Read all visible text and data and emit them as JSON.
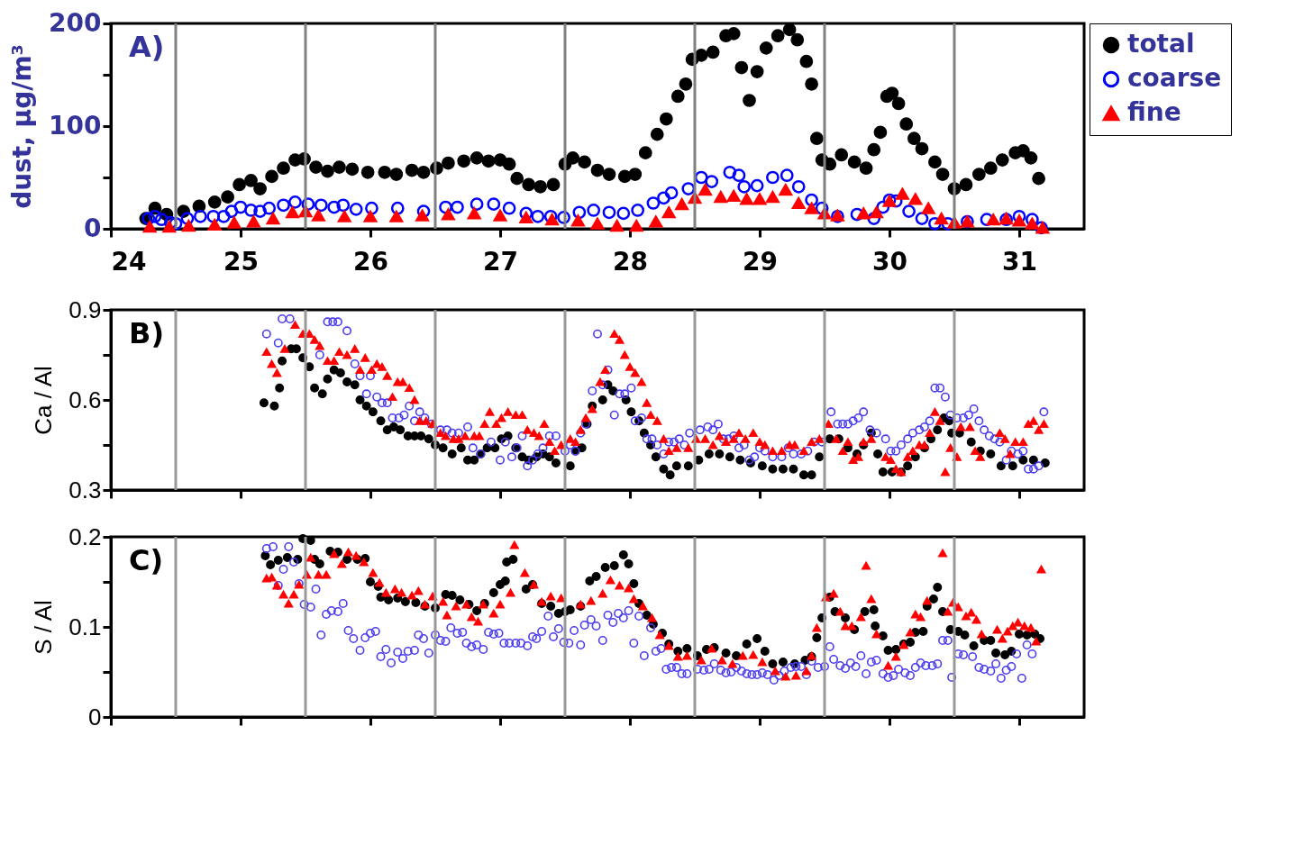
{
  "chart_data": [
    {
      "type": "scatter",
      "ylabel": "dust,  µg/m³",
      "annotations": [
        "A)"
      ],
      "xlim": [
        24,
        31.5
      ],
      "xticks": [
        24,
        25,
        26,
        27,
        28,
        29,
        30,
        31
      ],
      "ylim": [
        0,
        200
      ],
      "yticks": [
        0,
        {
          "value": 50,
          "label": null
        },
        100,
        {
          "value": 150,
          "label": null
        },
        200
      ],
      "legend": "top right",
      "ref_lines": [
        {
          "axis": "x",
          "value": 24.5,
          "color": "#808080"
        },
        {
          "axis": "x",
          "value": 25.5,
          "color": "#808080"
        },
        {
          "axis": "x",
          "value": 26.5,
          "color": "#808080"
        },
        {
          "axis": "x",
          "value": 27.5,
          "color": "#808080"
        },
        {
          "axis": "x",
          "value": 28.5,
          "color": "#808080"
        },
        {
          "axis": "x",
          "value": 29.5,
          "color": "#808080"
        },
        {
          "axis": "x",
          "value": 30.5,
          "color": "#808080"
        }
      ],
      "series": [
        {
          "name": "total",
          "color": "#000000",
          "marker": "circle",
          "x": [
            24.27,
            24.34,
            24.43,
            24.56,
            24.68,
            24.8,
            24.9,
            24.99,
            25.08,
            25.15,
            25.24,
            25.33,
            25.42,
            25.49,
            25.58,
            25.67,
            25.76,
            25.86,
            25.98,
            26.11,
            26.2,
            26.32,
            26.41,
            26.51,
            26.6,
            26.72,
            26.82,
            26.91,
            27.0,
            27.07,
            27.13,
            27.22,
            27.31,
            27.41,
            27.5,
            27.56,
            27.65,
            27.75,
            27.84,
            27.96,
            28.04,
            28.12,
            28.21,
            28.28,
            28.37,
            28.43,
            28.48,
            28.55,
            28.64,
            28.74,
            28.8,
            28.86,
            28.92,
            28.98,
            29.05,
            29.14,
            29.23,
            29.29,
            29.36,
            29.4,
            29.44,
            29.48,
            29.54,
            29.63,
            29.73,
            29.82,
            29.88,
            29.93,
            29.98,
            30.02,
            30.07,
            30.13,
            30.19,
            30.25,
            30.35,
            30.41,
            30.5,
            30.59,
            30.69,
            30.78,
            30.87,
            30.97,
            31.03,
            31.09,
            31.15
          ],
          "values": [
            10,
            20,
            14,
            17,
            22,
            26,
            31,
            43,
            47,
            39,
            51,
            59,
            67,
            68,
            60,
            56,
            60,
            58,
            55,
            55,
            53,
            57,
            55,
            59,
            64,
            66,
            69,
            66,
            67,
            63,
            49,
            43,
            41,
            43,
            63,
            69,
            65,
            57,
            53,
            51,
            53,
            74,
            92,
            107,
            129,
            141,
            165,
            169,
            172,
            188,
            190,
            157,
            125,
            153,
            176,
            188,
            194,
            184,
            163,
            141,
            88,
            67,
            63,
            72,
            65,
            59,
            77,
            94,
            129,
            132,
            122,
            102,
            88,
            78,
            65,
            53,
            39,
            43,
            53,
            59,
            67,
            74,
            76,
            69,
            49
          ]
        },
        {
          "name": "coarse",
          "color": "#0000ff",
          "marker": "open circle",
          "x": [
            24.29,
            24.34,
            24.39,
            24.46,
            24.5,
            24.59,
            24.69,
            24.79,
            24.87,
            24.93,
            25.0,
            25.08,
            25.15,
            25.22,
            25.33,
            25.42,
            25.52,
            25.62,
            25.72,
            25.79,
            25.89,
            26.01,
            26.21,
            26.41,
            26.58,
            26.67,
            26.82,
            26.95,
            27.07,
            27.2,
            27.29,
            27.39,
            27.49,
            27.61,
            27.72,
            27.84,
            27.95,
            28.06,
            28.18,
            28.26,
            28.32,
            28.45,
            28.55,
            28.63,
            28.77,
            28.84,
            28.88,
            28.98,
            29.1,
            29.21,
            29.3,
            29.4,
            29.48,
            29.6,
            29.75,
            29.88,
            29.95,
            30.0,
            30.05,
            30.15,
            30.25,
            30.35,
            30.45,
            30.6,
            30.75,
            30.9,
            31.0,
            31.1,
            31.17
          ],
          "values": [
            10,
            12,
            9,
            6,
            5,
            10,
            12,
            12,
            12,
            17,
            21,
            18,
            17,
            20,
            23,
            26,
            24,
            23,
            21,
            23,
            19,
            20,
            20,
            17,
            21,
            21,
            24,
            24,
            20,
            15,
            12,
            12,
            11,
            16,
            18,
            16,
            15,
            18,
            25,
            30,
            35,
            39,
            50,
            46,
            55,
            52,
            41,
            42,
            50,
            52,
            41,
            28,
            20,
            12,
            14,
            10,
            21,
            28,
            27,
            17,
            10,
            5,
            5,
            7,
            9,
            9,
            12,
            9,
            1
          ]
        },
        {
          "name": "fine",
          "color": "#ff0000",
          "marker": "triangle",
          "x": [
            24.3,
            24.45,
            24.6,
            24.8,
            24.95,
            25.1,
            25.25,
            25.4,
            25.5,
            25.6,
            25.8,
            26.0,
            26.2,
            26.4,
            26.6,
            26.8,
            27.0,
            27.2,
            27.4,
            27.6,
            27.75,
            27.9,
            28.05,
            28.2,
            28.3,
            28.4,
            28.5,
            28.58,
            28.7,
            28.8,
            28.9,
            29.0,
            29.1,
            29.2,
            29.3,
            29.4,
            29.5,
            29.6,
            29.8,
            29.9,
            30.0,
            30.1,
            30.2,
            30.3,
            30.4,
            30.5,
            30.6,
            30.8,
            30.9,
            31.0,
            31.1,
            31.18
          ],
          "values": [
            2,
            2,
            3,
            4,
            6,
            7,
            10,
            16,
            17,
            13,
            12,
            12,
            12,
            13,
            14,
            15,
            13,
            11,
            9,
            8,
            5,
            3,
            3,
            7,
            16,
            24,
            30,
            38,
            31,
            32,
            29,
            29,
            31,
            38,
            25,
            20,
            15,
            13,
            15,
            16,
            27,
            34,
            29,
            20,
            10,
            6,
            7,
            9,
            10,
            8,
            5,
            1
          ]
        }
      ]
    },
    {
      "type": "scatter",
      "ylabel": "Ca / Al",
      "annotations": [
        "B)"
      ],
      "xlim": [
        24,
        31.5
      ],
      "xticks": [
        {
          "value": 24,
          "label": null
        },
        {
          "value": 25,
          "label": null
        },
        {
          "value": 26,
          "label": null
        },
        {
          "value": 27,
          "label": null
        },
        {
          "value": 28,
          "label": null
        },
        {
          "value": 29,
          "label": null
        },
        {
          "value": 30,
          "label": null
        },
        {
          "value": 31,
          "label": null
        }
      ],
      "ylim": [
        0.3,
        0.9
      ],
      "yticks": [
        0.3,
        {
          "value": 0.45,
          "label": null
        },
        0.6,
        {
          "value": 0.75,
          "label": null
        },
        0.9
      ],
      "tick_labels": "y",
      "ref_lines": [
        {
          "axis": "x",
          "value": 24.5,
          "color": "#999999"
        },
        {
          "axis": "x",
          "value": 25.5,
          "color": "#999999"
        },
        {
          "axis": "x",
          "value": 26.5,
          "color": "#999999"
        },
        {
          "axis": "x",
          "value": 27.5,
          "color": "#999999"
        },
        {
          "axis": "x",
          "value": 28.5,
          "color": "#999999"
        },
        {
          "axis": "x",
          "value": 29.5,
          "color": "#999999"
        },
        {
          "axis": "x",
          "value": 30.5,
          "color": "#999999"
        }
      ],
      "series": [
        {
          "color": "#000000",
          "marker": "circle",
          "x": [
            25.18,
            25.26,
            25.3,
            25.32,
            25.39,
            25.43,
            25.48,
            25.53,
            25.57,
            25.63,
            25.67,
            25.72,
            25.77,
            25.82,
            25.88,
            25.92,
            25.97,
            26.02,
            26.08,
            26.13,
            26.18,
            26.23,
            26.29,
            26.34,
            26.39,
            26.45,
            26.5,
            26.56,
            26.63,
            26.7,
            26.75,
            26.8,
            26.85,
            26.9,
            26.96,
            27.01,
            27.06,
            27.12,
            27.17,
            27.22,
            27.28,
            27.33,
            27.38,
            27.43,
            27.54,
            27.58,
            27.63,
            27.67,
            27.71,
            27.79,
            27.83,
            27.87,
            27.97,
            28.01,
            28.07,
            28.11,
            28.16,
            28.2,
            28.26,
            28.31,
            28.36,
            28.45,
            28.53,
            28.61,
            28.69,
            28.77,
            28.85,
            28.93,
            29.02,
            29.1,
            29.18,
            29.26,
            29.34,
            29.4,
            29.46,
            29.54,
            29.61,
            29.68,
            29.75,
            29.8,
            29.86,
            29.91,
            29.95,
            30.02,
            30.09,
            30.14,
            30.2,
            30.27,
            30.32,
            30.37,
            30.42,
            30.46,
            30.48,
            30.54,
            30.63,
            30.7,
            30.78,
            30.86,
            30.95,
            31.03,
            31.11,
            31.2
          ],
          "values": [
            0.59,
            0.58,
            0.64,
            0.73,
            0.77,
            0.77,
            0.74,
            0.71,
            0.64,
            0.62,
            0.67,
            0.7,
            0.69,
            0.66,
            0.65,
            0.6,
            0.58,
            0.56,
            0.53,
            0.5,
            0.51,
            0.5,
            0.48,
            0.48,
            0.48,
            0.47,
            0.45,
            0.44,
            0.42,
            0.44,
            0.4,
            0.4,
            0.42,
            0.44,
            0.44,
            0.47,
            0.48,
            0.44,
            0.41,
            0.4,
            0.41,
            0.42,
            0.41,
            0.39,
            0.38,
            0.43,
            0.44,
            0.52,
            0.58,
            0.6,
            0.65,
            0.63,
            0.6,
            0.56,
            0.53,
            0.49,
            0.45,
            0.41,
            0.37,
            0.35,
            0.38,
            0.38,
            0.4,
            0.42,
            0.42,
            0.41,
            0.4,
            0.39,
            0.38,
            0.37,
            0.37,
            0.37,
            0.35,
            0.35,
            0.41,
            0.47,
            0.47,
            0.44,
            0.42,
            0.45,
            0.49,
            0.42,
            0.36,
            0.36,
            0.36,
            0.38,
            0.41,
            0.44,
            0.47,
            0.5,
            0.54,
            0.53,
            0.49,
            0.49,
            0.46,
            0.43,
            0.42,
            0.38,
            0.38,
            0.4,
            0.4,
            0.39
          ]
        },
        {
          "color": "#4b3cf0",
          "marker": "open circle",
          "x": [
            25.2,
            25.29,
            25.32,
            25.38,
            25.61,
            25.67,
            25.71,
            25.75,
            25.82,
            25.88,
            25.92,
            26.0,
            25.97,
            26.05,
            26.09,
            26.13,
            26.17,
            26.22,
            26.26,
            26.3,
            26.34,
            26.38,
            26.42,
            26.47,
            26.54,
            26.59,
            26.63,
            26.68,
            26.75,
            26.79,
            26.85,
            26.93,
            27.0,
            27.04,
            27.09,
            27.13,
            27.17,
            27.21,
            27.25,
            27.29,
            27.33,
            27.38,
            27.43,
            27.5,
            27.54,
            27.58,
            27.62,
            27.66,
            27.71,
            27.75,
            27.79,
            27.83,
            27.88,
            27.92,
            27.96,
            28.01,
            28.04,
            28.09,
            28.13,
            28.17,
            28.21,
            28.26,
            28.3,
            28.34,
            28.38,
            28.42,
            28.46,
            28.54,
            28.6,
            28.64,
            28.68,
            28.72,
            28.76,
            28.8,
            28.84,
            28.88,
            28.92,
            28.96,
            29.0,
            29.04,
            29.1,
            29.17,
            29.22,
            29.26,
            29.32,
            29.37,
            29.42,
            29.48,
            29.55,
            29.6,
            29.64,
            29.68,
            29.72,
            29.76,
            29.8,
            29.85,
            29.9,
            29.97,
            30.01,
            30.05,
            30.09,
            30.14,
            30.18,
            30.23,
            30.27,
            30.31,
            30.35,
            30.39,
            30.43,
            30.47,
            30.52,
            30.57,
            30.61,
            30.65,
            30.69,
            30.73,
            30.77,
            30.81,
            30.85,
            30.9,
            30.94,
            30.99,
            31.03,
            31.07,
            31.11,
            31.15,
            31.19
          ],
          "values": [
            0.82,
            0.79,
            0.87,
            0.87,
            0.75,
            0.86,
            0.86,
            0.86,
            0.83,
            0.72,
            0.68,
            0.68,
            0.62,
            0.61,
            0.59,
            0.59,
            0.54,
            0.54,
            0.55,
            0.58,
            0.53,
            0.56,
            0.54,
            0.52,
            0.5,
            0.5,
            0.49,
            0.49,
            0.51,
            0.44,
            0.42,
            0.46,
            0.4,
            0.46,
            0.41,
            0.44,
            0.48,
            0.38,
            0.4,
            0.42,
            0.44,
            0.48,
            0.48,
            0.43,
            0.45,
            0.43,
            0.49,
            0.52,
            0.63,
            0.82,
            0.65,
            0.7,
            0.55,
            0.62,
            0.62,
            0.64,
            0.53,
            0.54,
            0.47,
            0.47,
            0.45,
            0.42,
            0.46,
            0.46,
            0.47,
            0.45,
            0.49,
            0.5,
            0.51,
            0.5,
            0.52,
            0.47,
            0.47,
            0.48,
            0.44,
            0.45,
            0.4,
            0.41,
            0.44,
            0.43,
            0.41,
            0.41,
            0.44,
            0.42,
            0.42,
            0.43,
            0.46,
            0.46,
            0.56,
            0.52,
            0.52,
            0.52,
            0.53,
            0.54,
            0.56,
            0.5,
            0.49,
            0.47,
            0.43,
            0.43,
            0.45,
            0.47,
            0.49,
            0.5,
            0.51,
            0.53,
            0.64,
            0.64,
            0.61,
            0.55,
            0.54,
            0.54,
            0.55,
            0.57,
            0.53,
            0.5,
            0.48,
            0.47,
            0.46,
            0.4,
            0.43,
            0.42,
            0.43,
            0.37,
            0.37,
            0.38,
            0.56
          ]
        },
        {
          "color": "#ff0000",
          "marker": "triangle",
          "x": [
            25.2,
            25.24,
            25.28,
            25.34,
            25.42,
            25.48,
            25.53,
            25.57,
            25.61,
            25.67,
            25.72,
            25.76,
            25.82,
            25.88,
            25.92,
            25.96,
            26.01,
            26.05,
            26.09,
            26.13,
            26.17,
            26.21,
            26.25,
            26.3,
            26.34,
            26.38,
            26.43,
            26.48,
            26.54,
            26.58,
            26.64,
            26.68,
            26.73,
            26.8,
            26.84,
            26.88,
            26.92,
            26.97,
            27.01,
            27.06,
            27.12,
            27.17,
            27.21,
            27.26,
            27.3,
            27.34,
            27.38,
            27.42,
            27.47,
            27.54,
            27.58,
            27.62,
            27.66,
            27.71,
            27.77,
            27.81,
            27.88,
            27.92,
            27.96,
            28.0,
            28.04,
            28.09,
            28.13,
            28.16,
            28.21,
            28.26,
            28.3,
            28.36,
            28.45,
            28.51,
            28.58,
            28.64,
            28.69,
            28.74,
            28.8,
            28.84,
            28.89,
            28.95,
            29.0,
            29.04,
            29.1,
            29.17,
            29.23,
            29.27,
            29.34,
            29.4,
            29.46,
            29.53,
            29.59,
            29.64,
            29.68,
            29.72,
            29.76,
            29.8,
            29.86,
            29.97,
            30.01,
            30.05,
            30.09,
            30.14,
            30.18,
            30.23,
            30.27,
            30.31,
            30.35,
            30.39,
            30.43,
            30.47,
            30.52,
            30.55,
            30.62,
            30.66,
            30.7,
            30.85,
            30.89,
            30.93,
            30.97,
            31.03,
            31.07,
            31.11,
            31.15,
            31.19
          ],
          "values": [
            0.76,
            0.72,
            0.69,
            0.77,
            0.85,
            0.82,
            0.82,
            0.8,
            0.78,
            0.73,
            0.73,
            0.76,
            0.75,
            0.77,
            0.7,
            0.74,
            0.7,
            0.72,
            0.71,
            0.68,
            0.61,
            0.66,
            0.66,
            0.64,
            0.6,
            0.53,
            0.53,
            0.52,
            0.49,
            0.48,
            0.47,
            0.47,
            0.48,
            0.48,
            0.48,
            0.52,
            0.56,
            0.52,
            0.54,
            0.56,
            0.55,
            0.55,
            0.5,
            0.49,
            0.48,
            0.52,
            0.46,
            0.43,
            0.45,
            0.47,
            0.46,
            0.5,
            0.54,
            0.57,
            0.66,
            0.7,
            0.82,
            0.8,
            0.75,
            0.71,
            0.69,
            0.66,
            0.59,
            0.55,
            0.53,
            0.47,
            0.43,
            0.44,
            0.44,
            0.47,
            0.47,
            0.45,
            0.48,
            0.46,
            0.47,
            0.49,
            0.47,
            0.49,
            0.46,
            0.45,
            0.43,
            0.43,
            0.45,
            0.45,
            0.43,
            0.46,
            0.47,
            0.52,
            0.47,
            0.43,
            0.46,
            0.4,
            0.41,
            0.46,
            0.47,
            0.41,
            0.4,
            0.37,
            0.36,
            0.41,
            0.43,
            0.45,
            0.45,
            0.49,
            0.56,
            0.53,
            0.36,
            0.44,
            0.41,
            0.51,
            0.51,
            0.43,
            0.41,
            0.49,
            0.47,
            0.42,
            0.46,
            0.46,
            0.52,
            0.53,
            0.5,
            0.52
          ]
        }
      ]
    },
    {
      "type": "scatter",
      "ylabel": "S / Al",
      "annotations": [
        "C)"
      ],
      "xlim": [
        24,
        31.5
      ],
      "xticks": [
        {
          "value": 24,
          "label": null
        },
        {
          "value": 25,
          "label": null
        },
        {
          "value": 26,
          "label": null
        },
        {
          "value": 27,
          "label": null
        },
        {
          "value": 28,
          "label": null
        },
        {
          "value": 29,
          "label": null
        },
        {
          "value": 30,
          "label": null
        },
        {
          "value": 31,
          "label": null
        }
      ],
      "ylim": [
        0,
        0.2
      ],
      "yticks": [
        0,
        {
          "value": 0.05,
          "label": null
        },
        0.1,
        {
          "value": 0.15,
          "label": null
        },
        0.2
      ],
      "tick_labels": "y",
      "ref_lines": [
        {
          "axis": "x",
          "value": 24.5,
          "color": "#999999"
        },
        {
          "axis": "x",
          "value": 25.5,
          "color": "#999999"
        },
        {
          "axis": "x",
          "value": 26.5,
          "color": "#999999"
        },
        {
          "axis": "x",
          "value": 27.5,
          "color": "#999999"
        },
        {
          "axis": "x",
          "value": 28.5,
          "color": "#999999"
        },
        {
          "axis": "x",
          "value": 29.5,
          "color": "#999999"
        },
        {
          "axis": "x",
          "value": 30.5,
          "color": "#999999"
        }
      ],
      "series": [
        {
          "color": "#000000",
          "marker": "circle",
          "x": [
            25.19,
            25.23,
            25.29,
            25.36,
            25.44,
            25.48,
            25.54,
            25.57,
            25.61,
            25.69,
            25.75,
            25.82,
            25.9,
            25.96,
            26.0,
            26.06,
            26.08,
            26.14,
            26.21,
            26.27,
            26.35,
            26.42,
            26.5,
            26.58,
            26.63,
            26.69,
            26.76,
            26.82,
            26.88,
            26.95,
            27.0,
            27.04,
            27.05,
            27.1,
            27.2,
            27.25,
            27.32,
            27.39,
            27.45,
            27.5,
            27.54,
            27.62,
            27.69,
            27.74,
            27.81,
            27.88,
            27.95,
            27.99,
            28.03,
            28.07,
            28.13,
            28.18,
            28.25,
            28.3,
            28.37,
            28.44,
            28.52,
            28.59,
            28.65,
            28.74,
            28.82,
            28.9,
            28.98,
            29.04,
            29.1,
            29.18,
            29.27,
            29.35,
            29.4,
            29.44,
            29.48,
            29.54,
            29.58,
            29.66,
            29.73,
            29.81,
            29.88,
            29.89,
            29.95,
            29.99,
            30.05,
            30.11,
            30.16,
            30.2,
            30.26,
            30.29,
            30.34,
            30.37,
            30.41,
            30.47,
            30.53,
            30.58,
            30.65,
            30.73,
            30.78,
            30.82,
            30.89,
            30.94,
            31.0,
            31.06,
            31.12,
            31.16
          ],
          "values": [
            0.179,
            0.169,
            0.174,
            0.177,
            0.175,
            0.198,
            0.196,
            0.175,
            0.17,
            0.184,
            0.183,
            0.175,
            0.175,
            0.176,
            0.15,
            0.145,
            0.133,
            0.13,
            0.132,
            0.128,
            0.127,
            0.123,
            0.121,
            0.136,
            0.135,
            0.13,
            0.125,
            0.118,
            0.126,
            0.138,
            0.147,
            0.151,
            0.172,
            0.175,
            0.142,
            0.147,
            0.126,
            0.123,
            0.115,
            0.117,
            0.119,
            0.123,
            0.151,
            0.156,
            0.166,
            0.168,
            0.18,
            0.17,
            0.148,
            0.126,
            0.113,
            0.103,
            0.093,
            0.081,
            0.073,
            0.076,
            0.068,
            0.075,
            0.077,
            0.071,
            0.068,
            0.081,
            0.087,
            0.073,
            0.059,
            0.061,
            0.059,
            0.063,
            0.067,
            0.088,
            0.11,
            0.133,
            0.117,
            0.11,
            0.097,
            0.117,
            0.119,
            0.101,
            0.09,
            0.074,
            0.075,
            0.081,
            0.083,
            0.094,
            0.095,
            0.123,
            0.131,
            0.144,
            0.117,
            0.097,
            0.095,
            0.091,
            0.079,
            0.085,
            0.085,
            0.071,
            0.069,
            0.073,
            0.092,
            0.091,
            0.092,
            0.087
          ]
        },
        {
          "color": "#4b3cf0",
          "marker": "open circle",
          "x": [
            25.2,
            25.25,
            25.29,
            25.33,
            25.37,
            25.41,
            25.45,
            25.49,
            25.54,
            25.58,
            25.62,
            25.66,
            25.7,
            25.75,
            25.79,
            25.83,
            25.87,
            25.92,
            25.96,
            26.0,
            26.04,
            26.08,
            26.12,
            26.16,
            26.21,
            26.25,
            26.29,
            26.34,
            26.37,
            26.41,
            26.45,
            26.5,
            26.54,
            26.58,
            26.62,
            26.67,
            26.71,
            26.74,
            26.78,
            26.82,
            26.87,
            26.91,
            26.95,
            26.99,
            27.03,
            27.07,
            27.12,
            27.16,
            27.21,
            27.25,
            27.28,
            27.32,
            27.37,
            27.41,
            27.45,
            27.49,
            27.53,
            27.57,
            27.62,
            27.65,
            27.7,
            27.74,
            27.79,
            27.83,
            27.87,
            27.91,
            27.95,
            27.99,
            28.03,
            28.07,
            28.11,
            28.16,
            28.2,
            28.24,
            28.28,
            28.32,
            28.36,
            28.4,
            28.44,
            28.52,
            28.57,
            28.61,
            28.65,
            28.7,
            28.74,
            28.78,
            28.82,
            28.86,
            28.9,
            28.94,
            28.98,
            29.02,
            29.06,
            29.11,
            29.15,
            29.19,
            29.24,
            29.28,
            29.32,
            29.36,
            29.4,
            29.45,
            29.5,
            29.54,
            29.57,
            29.62,
            29.66,
            29.7,
            29.74,
            29.78,
            29.82,
            29.86,
            29.9,
            29.95,
            29.99,
            30.03,
            30.07,
            30.12,
            30.16,
            30.2,
            30.24,
            30.28,
            30.33,
            30.37,
            30.41,
            30.45,
            30.48,
            30.53,
            30.57,
            30.64,
            30.69,
            30.73,
            30.78,
            30.82,
            30.86,
            30.9,
            30.94,
            30.98,
            31.02,
            31.06,
            31.1
          ],
          "values": [
            0.187,
            0.189,
            0.146,
            0.164,
            0.189,
            0.172,
            0.148,
            0.125,
            0.122,
            0.142,
            0.091,
            0.114,
            0.118,
            0.117,
            0.126,
            0.096,
            0.087,
            0.074,
            0.088,
            0.093,
            0.095,
            0.067,
            0.075,
            0.06,
            0.072,
            0.065,
            0.073,
            0.074,
            0.091,
            0.087,
            0.071,
            0.091,
            0.085,
            0.084,
            0.099,
            0.093,
            0.094,
            0.082,
            0.078,
            0.08,
            0.075,
            0.094,
            0.092,
            0.093,
            0.082,
            0.082,
            0.082,
            0.082,
            0.079,
            0.089,
            0.087,
            0.095,
            0.112,
            0.089,
            0.098,
            0.083,
            0.082,
            0.096,
            0.08,
            0.102,
            0.108,
            0.101,
            0.085,
            0.113,
            0.105,
            0.115,
            0.11,
            0.118,
            0.082,
            0.112,
            0.068,
            0.099,
            0.073,
            0.076,
            0.053,
            0.055,
            0.055,
            0.048,
            0.048,
            0.053,
            0.052,
            0.053,
            0.059,
            0.052,
            0.049,
            0.05,
            0.055,
            0.051,
            0.048,
            0.047,
            0.047,
            0.049,
            0.047,
            0.041,
            0.046,
            0.051,
            0.055,
            0.056,
            0.056,
            0.047,
            0.062,
            0.055,
            0.056,
            0.078,
            0.064,
            0.057,
            0.054,
            0.06,
            0.056,
            0.068,
            0.048,
            0.061,
            0.063,
            0.048,
            0.044,
            0.046,
            0.053,
            0.049,
            0.046,
            0.055,
            0.06,
            0.057,
            0.057,
            0.059,
            0.085,
            0.085,
            0.044,
            0.07,
            0.069,
            0.067,
            0.055,
            0.053,
            0.051,
            0.059,
            0.043,
            0.052,
            0.056,
            0.07,
            0.043,
            0.08,
            0.07
          ]
        },
        {
          "color": "#ff0000",
          "marker": "triangle",
          "x": [
            25.2,
            25.24,
            25.28,
            25.33,
            25.37,
            25.41,
            25.45,
            25.51,
            25.54,
            25.6,
            25.66,
            25.72,
            25.78,
            25.83,
            25.89,
            25.95,
            26.02,
            26.07,
            26.12,
            26.19,
            26.24,
            26.32,
            26.37,
            26.42,
            26.48,
            26.56,
            26.59,
            26.66,
            26.74,
            26.78,
            26.83,
            26.87,
            26.95,
            27.0,
            27.08,
            27.11,
            27.19,
            27.26,
            27.32,
            27.39,
            27.47,
            27.62,
            27.7,
            27.79,
            27.85,
            27.92,
            27.99,
            28.03,
            28.1,
            28.17,
            28.23,
            28.3,
            28.37,
            28.44,
            28.55,
            28.63,
            28.71,
            28.79,
            28.87,
            28.95,
            29.02,
            29.12,
            29.2,
            29.28,
            29.36,
            29.4,
            29.44,
            29.51,
            29.57,
            29.62,
            29.66,
            29.71,
            29.78,
            29.82,
            29.86,
            29.9,
            29.99,
            30.05,
            30.11,
            30.16,
            30.2,
            30.24,
            30.29,
            30.41,
            30.45,
            30.49,
            30.53,
            30.59,
            30.63,
            30.67,
            30.71,
            30.83,
            30.87,
            30.91,
            30.95,
            30.99,
            31.04,
            31.09,
            31.13,
            31.17
          ],
          "values": [
            0.154,
            0.155,
            0.146,
            0.136,
            0.126,
            0.136,
            0.147,
            0.158,
            0.177,
            0.158,
            0.158,
            0.181,
            0.17,
            0.183,
            0.179,
            0.172,
            0.16,
            0.149,
            0.138,
            0.142,
            0.138,
            0.135,
            0.14,
            0.125,
            0.134,
            0.128,
            0.113,
            0.123,
            0.125,
            0.111,
            0.106,
            0.125,
            0.115,
            0.125,
            0.138,
            0.191,
            0.16,
            0.147,
            0.128,
            0.134,
            0.132,
            0.125,
            0.129,
            0.137,
            0.152,
            0.146,
            0.143,
            0.131,
            0.123,
            0.11,
            0.091,
            0.079,
            0.067,
            0.068,
            0.063,
            0.076,
            0.063,
            0.059,
            0.068,
            0.069,
            0.061,
            0.051,
            0.045,
            0.046,
            0.051,
            0.068,
            0.099,
            0.133,
            0.137,
            0.117,
            0.101,
            0.101,
            0.111,
            0.168,
            0.131,
            0.092,
            0.057,
            0.067,
            0.08,
            0.094,
            0.114,
            0.111,
            0.129,
            0.182,
            0.117,
            0.127,
            0.122,
            0.112,
            0.116,
            0.108,
            0.092,
            0.097,
            0.087,
            0.095,
            0.101,
            0.105,
            0.101,
            0.099,
            0.084,
            0.164
          ]
        }
      ]
    }
  ]
}
